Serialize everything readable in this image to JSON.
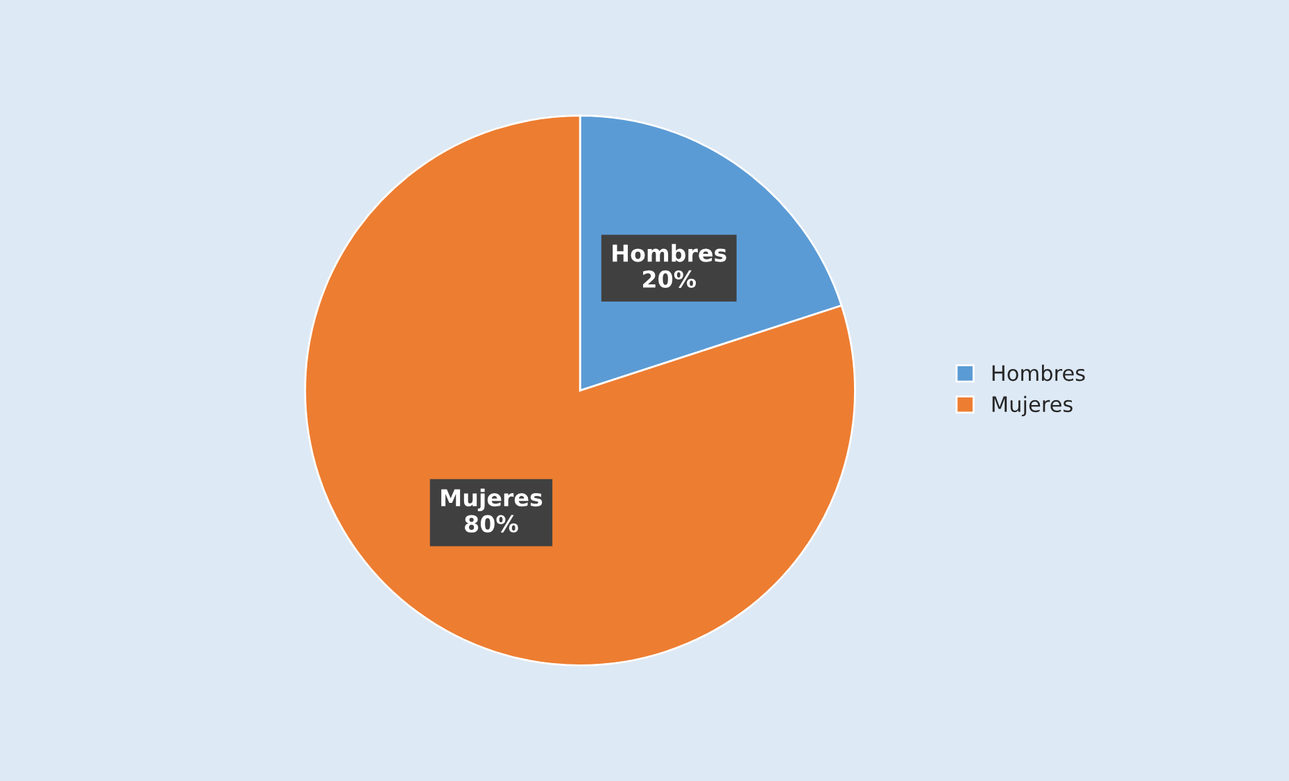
{
  "chart_data": {
    "type": "pie",
    "categories": [
      "Hombres",
      "Mujeres"
    ],
    "values": [
      20,
      80
    ],
    "colors": [
      "#5b9bd5",
      "#ed7d31"
    ],
    "value_labels": [
      "20%",
      "80%"
    ],
    "legend": "right"
  }
}
